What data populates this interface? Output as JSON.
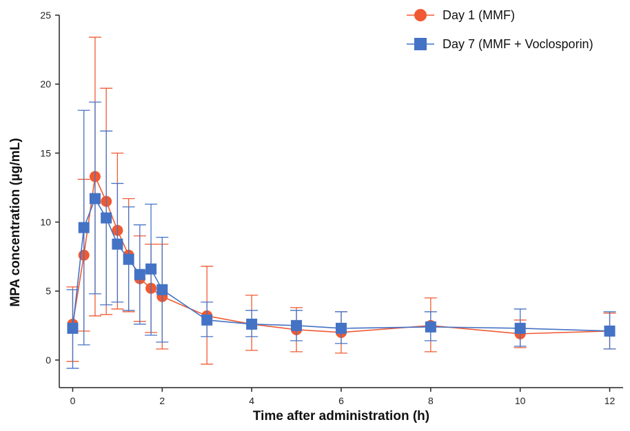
{
  "chart_data": {
    "type": "line",
    "title": "",
    "xlabel": "Time after administration (h)",
    "ylabel": "MPA concentration (µg/mL)",
    "xlim": [
      -0.3,
      12.3
    ],
    "ylim": [
      -2,
      25
    ],
    "x_ticks": [
      0,
      2,
      4,
      6,
      8,
      10,
      12
    ],
    "y_ticks": [
      0,
      5,
      10,
      15,
      20,
      25
    ],
    "grid": false,
    "legend_position": "top-right",
    "series": [
      {
        "name": "Day 1 (MMF)",
        "marker": "circle",
        "color": "#f05a32",
        "x": [
          0,
          0.25,
          0.5,
          0.75,
          1,
          1.25,
          1.5,
          1.75,
          2,
          3,
          4,
          5,
          6,
          8,
          10,
          12
        ],
        "y": [
          2.6,
          7.6,
          13.3,
          11.5,
          9.4,
          7.6,
          5.9,
          5.2,
          4.6,
          3.2,
          2.6,
          2.2,
          2.0,
          2.5,
          1.9,
          2.1
        ],
        "err_low": [
          -0.1,
          2.1,
          3.2,
          3.3,
          3.7,
          3.5,
          2.8,
          2.0,
          0.8,
          -0.3,
          0.7,
          0.6,
          0.5,
          0.6,
          0.9,
          0.8
        ],
        "err_high": [
          5.3,
          13.1,
          23.4,
          19.7,
          15.0,
          11.7,
          9.0,
          8.4,
          8.4,
          6.8,
          4.7,
          3.8,
          3.5,
          4.5,
          2.9,
          3.4
        ]
      },
      {
        "name": "Day 7 (MMF + Voclosporin)",
        "marker": "square",
        "color": "#4472c4",
        "x": [
          0,
          0.25,
          0.5,
          0.75,
          1,
          1.25,
          1.5,
          1.75,
          2,
          3,
          4,
          5,
          6,
          8,
          10,
          12
        ],
        "y": [
          2.3,
          9.6,
          11.7,
          10.3,
          8.4,
          7.3,
          6.2,
          6.6,
          5.1,
          2.9,
          2.6,
          2.5,
          2.3,
          2.4,
          2.3,
          2.1
        ],
        "err_low": [
          -0.6,
          1.1,
          4.8,
          4.0,
          4.2,
          3.6,
          2.6,
          1.8,
          1.3,
          1.7,
          1.7,
          1.4,
          1.2,
          1.4,
          1.0,
          0.8
        ],
        "err_high": [
          5.1,
          18.1,
          18.7,
          16.6,
          12.8,
          11.1,
          9.8,
          11.3,
          8.9,
          4.2,
          3.6,
          3.6,
          3.5,
          3.5,
          3.7,
          3.5
        ]
      }
    ]
  }
}
